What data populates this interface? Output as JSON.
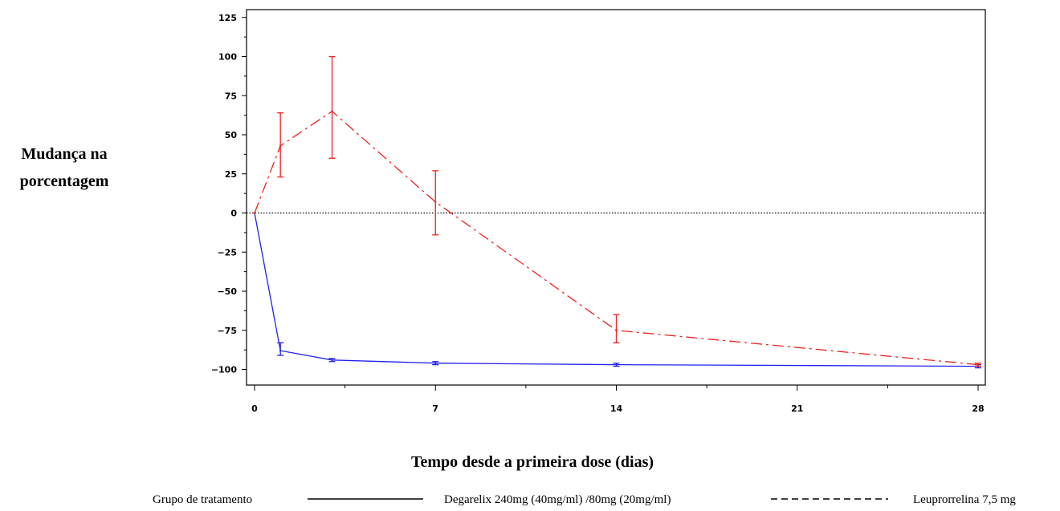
{
  "chart_data": {
    "type": "line",
    "title": "",
    "ylabel_lines": [
      "Mudança na",
      "porcentagem"
    ],
    "xlabel": "Tempo desde a primeira dose (dias)",
    "xlim": [
      0,
      28
    ],
    "ylim": [
      -110,
      130
    ],
    "x_ticks": [
      0,
      7,
      14,
      21,
      28
    ],
    "x_tick_labels": [
      "0",
      "7",
      "14",
      "21",
      "28"
    ],
    "x_minor_ticks": [
      3.5,
      10.5,
      17.5,
      24.5
    ],
    "y_ticks": [
      -100,
      -75,
      -50,
      -25,
      0,
      25,
      50,
      75,
      100,
      125
    ],
    "y_tick_labels": [
      "−100",
      "−75",
      "−50",
      "−25",
      "0",
      "25",
      "50",
      "75",
      "100",
      "125"
    ],
    "reference_line": {
      "y": 0,
      "style": "dotted",
      "color": "#000000"
    },
    "series": [
      {
        "name": "Degarelix 240mg (40mg/ml) /80mg (20mg/ml)",
        "color": "#2222ee",
        "dash": "solid",
        "x": [
          0,
          1,
          3,
          7,
          14,
          28
        ],
        "y": [
          0,
          -88,
          -94,
          -96,
          -97,
          -98
        ],
        "err_low": [
          0,
          -91,
          -95,
          -97,
          -98,
          -99
        ],
        "err_high": [
          0,
          -83,
          -93,
          -95,
          -96,
          -97
        ]
      },
      {
        "name": "Leuprorrelina 7,5 mg",
        "color": "#ee2222",
        "dash": "dashdot",
        "x": [
          0,
          1,
          3,
          7,
          14,
          28
        ],
        "y": [
          0,
          43,
          65,
          7,
          -75,
          -97
        ],
        "err_low": [
          0,
          23,
          35,
          -14,
          -83,
          -98
        ],
        "err_high": [
          0,
          64,
          100,
          27,
          -65,
          -96
        ]
      }
    ],
    "legend": {
      "placement": "bottom",
      "group_label": "Grupo de tratamento",
      "entries": [
        "Degarelix 240mg (40mg/ml) /80mg (20mg/ml)",
        "Leuprorrelina 7,5 mg"
      ]
    }
  }
}
